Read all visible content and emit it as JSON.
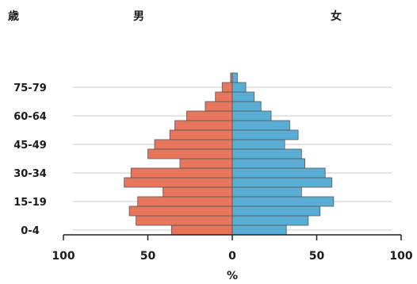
{
  "chart_data": {
    "type": "bar",
    "orientation": "horizontal-population-pyramid",
    "y_axis_title": "歳",
    "male_label": "男",
    "female_label": "女",
    "xlabel": "%",
    "xlim": [
      -100,
      100
    ],
    "x_ticks": [
      {
        "value": -100,
        "label": "100"
      },
      {
        "value": -50,
        "label": "50"
      },
      {
        "value": 0,
        "label": "0"
      },
      {
        "value": 50,
        "label": "50"
      },
      {
        "value": 100,
        "label": "100"
      }
    ],
    "categories": [
      "0-4",
      "5-9",
      "10-14",
      "15-19",
      "20-24",
      "25-29",
      "30-34",
      "35-39",
      "40-44",
      "45-49",
      "50-54",
      "55-59",
      "60-64",
      "65-69",
      "70-74",
      "75-79",
      "80+"
    ],
    "y_tick_labels": [
      {
        "category": "0-4",
        "label": "0-4"
      },
      {
        "category": "15-19",
        "label": "15-19"
      },
      {
        "category": "30-34",
        "label": "30-34"
      },
      {
        "category": "45-49",
        "label": "45-49"
      },
      {
        "category": "60-64",
        "label": "60-64"
      },
      {
        "category": "75-79",
        "label": "75-79"
      }
    ],
    "gridlines": true,
    "series": [
      {
        "name": "男",
        "color": "#e8765c",
        "values": [
          36,
          57,
          61,
          56,
          41,
          64,
          60,
          31,
          50,
          46,
          37,
          34,
          27,
          16,
          10,
          6,
          1
        ]
      },
      {
        "name": "女",
        "color": "#5aaed6",
        "values": [
          32,
          45,
          52,
          60,
          41,
          59,
          55,
          43,
          41,
          31,
          39,
          34,
          23,
          17,
          13,
          8,
          3
        ]
      }
    ]
  }
}
